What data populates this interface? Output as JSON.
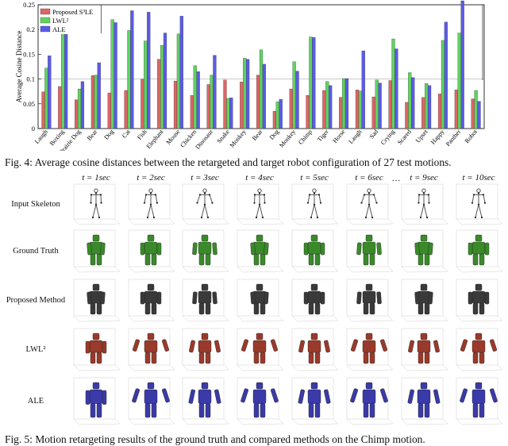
{
  "chart_data": {
    "type": "bar",
    "ylabel": "Average Cosine Distance",
    "ylim": [
      0,
      0.25
    ],
    "yticks": [
      "0",
      "0.05",
      "0.1",
      "0.15",
      "0.2",
      "0.25"
    ],
    "legend_position": "top-left",
    "grid": false,
    "categories": [
      "Laugh",
      "Boxing",
      "Prairie Dog",
      "Bear",
      "Dog",
      "Cat",
      "Fish",
      "Elephant",
      "Mouse",
      "Chicken",
      "Dinosaur",
      "Snake",
      "Monkey",
      "Bear",
      "Dog",
      "Monkey",
      "Chimp",
      "Tiger",
      "Horse",
      "Laugh",
      "Sad",
      "Crying",
      "Scared",
      "Upset",
      "Happy",
      "Panther",
      "Robot"
    ],
    "series": [
      {
        "name": "Proposed S³LE",
        "color": "#e06464",
        "values": [
          0.074,
          0.085,
          0.058,
          0.107,
          0.072,
          0.077,
          0.1,
          0.14,
          0.096,
          0.067,
          0.089,
          0.098,
          0.094,
          0.108,
          0.035,
          0.08,
          0.067,
          0.077,
          0.063,
          0.078,
          0.064,
          0.097,
          0.053,
          0.063,
          0.07,
          0.078,
          0.06
        ]
      },
      {
        "name": "LWL²",
        "color": "#5fd35f",
        "values": [
          0.122,
          0.192,
          0.08,
          0.108,
          0.22,
          0.198,
          0.177,
          0.168,
          0.191,
          0.127,
          0.108,
          0.061,
          0.142,
          0.159,
          0.054,
          0.135,
          0.185,
          0.095,
          0.101,
          0.076,
          0.098,
          0.181,
          0.113,
          0.091,
          0.178,
          0.193,
          0.077
        ]
      },
      {
        "name": "ALE",
        "color": "#5b5be8",
        "values": [
          0.147,
          0.199,
          0.095,
          0.133,
          0.214,
          0.238,
          0.235,
          0.193,
          0.227,
          0.115,
          0.148,
          0.062,
          0.14,
          0.13,
          0.059,
          0.116,
          0.184,
          0.087,
          0.101,
          0.157,
          0.092,
          0.161,
          0.103,
          0.087,
          0.215,
          0.258,
          0.055
        ]
      }
    ]
  },
  "captions": {
    "fig4": "Fig. 4: Average cosine distances between the retargeted and target robot configuration of 27 test motions.",
    "fig5": "Fig. 5: Motion retargeting results of the ground truth and compared methods on the Chimp motion."
  },
  "grid": {
    "times": [
      "t = 1sec",
      "t = 2sec",
      "t = 3sec",
      "t = 4sec",
      "t = 5sec",
      "t = 6sec",
      "t = 9sec",
      "t = 10sec"
    ],
    "ellipsis": "···",
    "rows": [
      {
        "label": "Input Skeleton",
        "color": "#555555"
      },
      {
        "label": "Ground Truth",
        "color": "#3a8a2a"
      },
      {
        "label": "Proposed Method",
        "color": "#3a3a3a"
      },
      {
        "label": "LWL²",
        "color": "#9a3a2a"
      },
      {
        "label": "ALE",
        "color": "#3a3aa8"
      }
    ]
  }
}
